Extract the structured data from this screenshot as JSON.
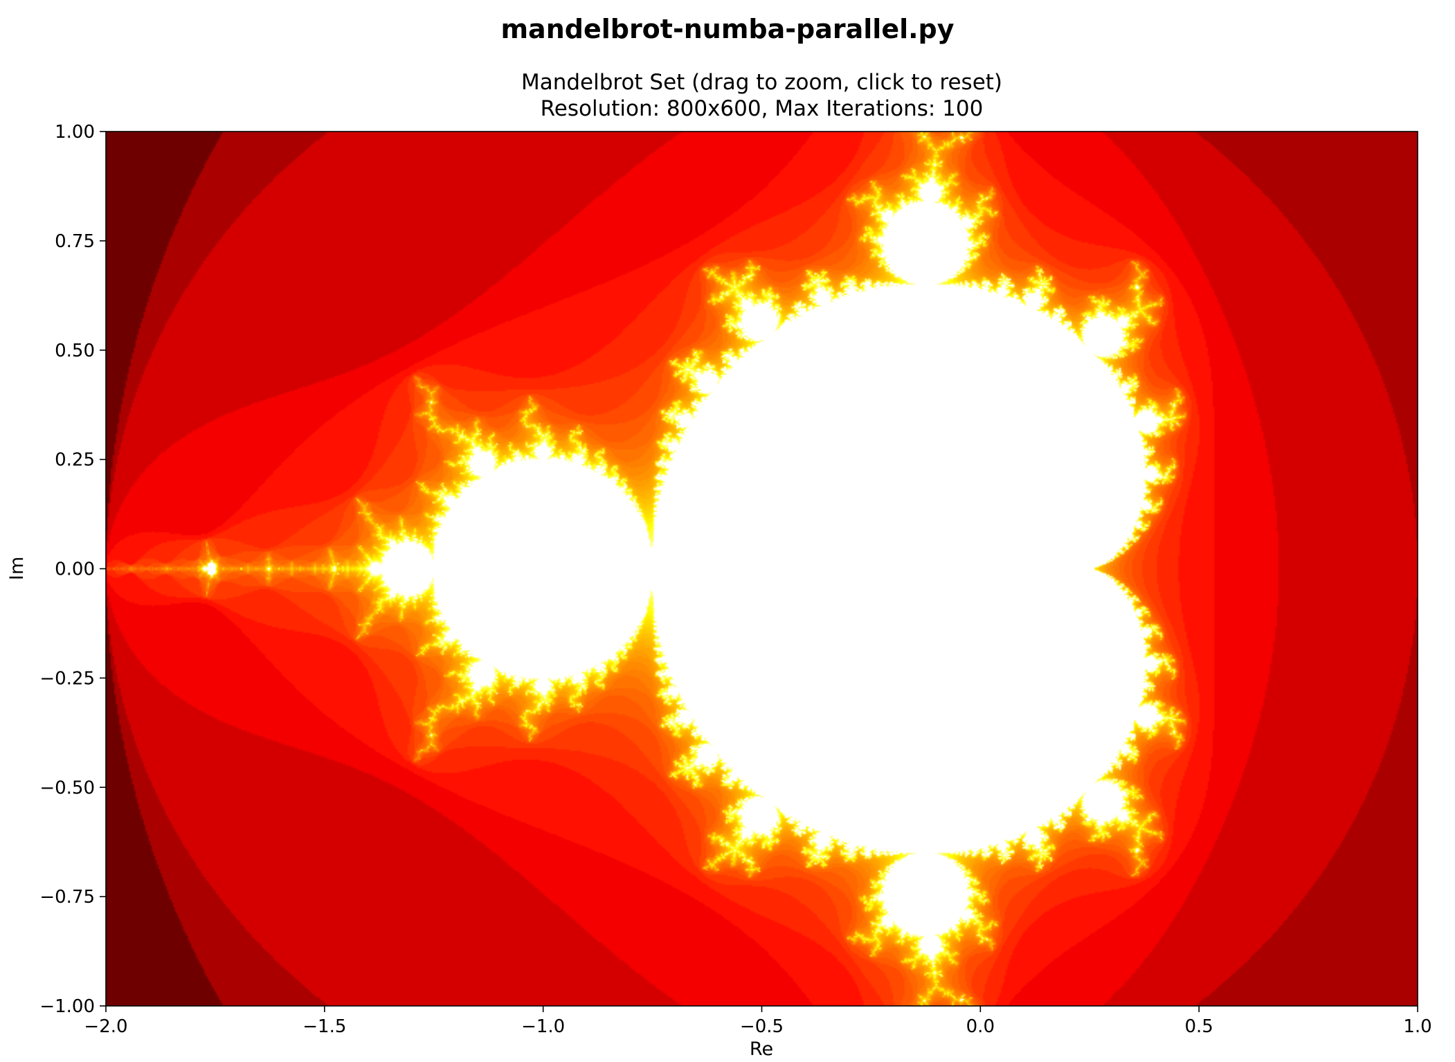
{
  "window": {
    "title": "mandelbrot-numba-parallel.py"
  },
  "colors": {
    "colormap": "hot",
    "background": "#ffffff",
    "set_interior": "#ffffff"
  },
  "chart_data": {
    "type": "heatmap",
    "title_line1": "Mandelbrot Set (drag to zoom, click to reset)",
    "title_line2": "Resolution: 800x600, Max Iterations: 100",
    "xlabel": "Re",
    "ylabel": "Im",
    "xlim": [
      -2.0,
      1.0
    ],
    "ylim": [
      -1.0,
      1.0
    ],
    "resolution": [
      800,
      600
    ],
    "max_iterations": 100,
    "colormap": "hot",
    "xticks": [
      -2.0,
      -1.5,
      -1.0,
      -0.5,
      0.0,
      0.5,
      1.0
    ],
    "xtick_labels": [
      "−2.0",
      "−1.5",
      "−1.0",
      "−0.5",
      "0.0",
      "0.5",
      "1.0"
    ],
    "yticks": [
      1.0,
      0.75,
      0.5,
      0.25,
      0.0,
      -0.25,
      -0.5,
      -0.75,
      -1.0
    ],
    "ytick_labels": [
      "1.00",
      "0.75",
      "0.50",
      "0.25",
      "0.00",
      "−0.25",
      "−0.50",
      "−0.75",
      "−1.00"
    ],
    "grid": false,
    "legend": "none"
  }
}
